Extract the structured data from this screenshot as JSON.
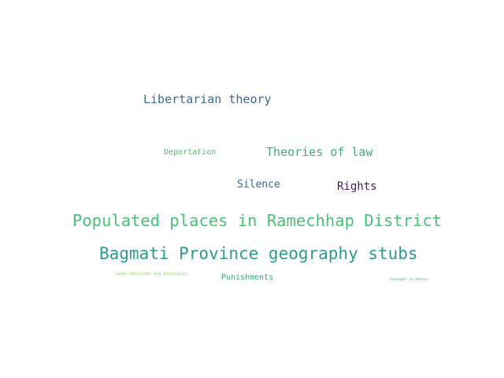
{
  "word_cloud": {
    "words": [
      {
        "text": "Libertarian theory",
        "color": "#3b6a97"
      },
      {
        "text": "Deportation",
        "color": "#4fbb6e"
      },
      {
        "text": "Theories of law",
        "color": "#3fae79"
      },
      {
        "text": "Silence",
        "color": "#38668f"
      },
      {
        "text": "Rights",
        "color": "#4a1568"
      },
      {
        "text": "Populated places in Ramechhap District",
        "color": "#4bbf76"
      },
      {
        "text": "Bagmati Province geography stubs",
        "color": "#2c9a8f"
      },
      {
        "text": "Legal doctrines and principles",
        "color": "#7fd15a"
      },
      {
        "text": "Punishments",
        "color": "#3aa182"
      },
      {
        "text": "Concepts in ethics",
        "color": "#2fa594"
      }
    ]
  }
}
